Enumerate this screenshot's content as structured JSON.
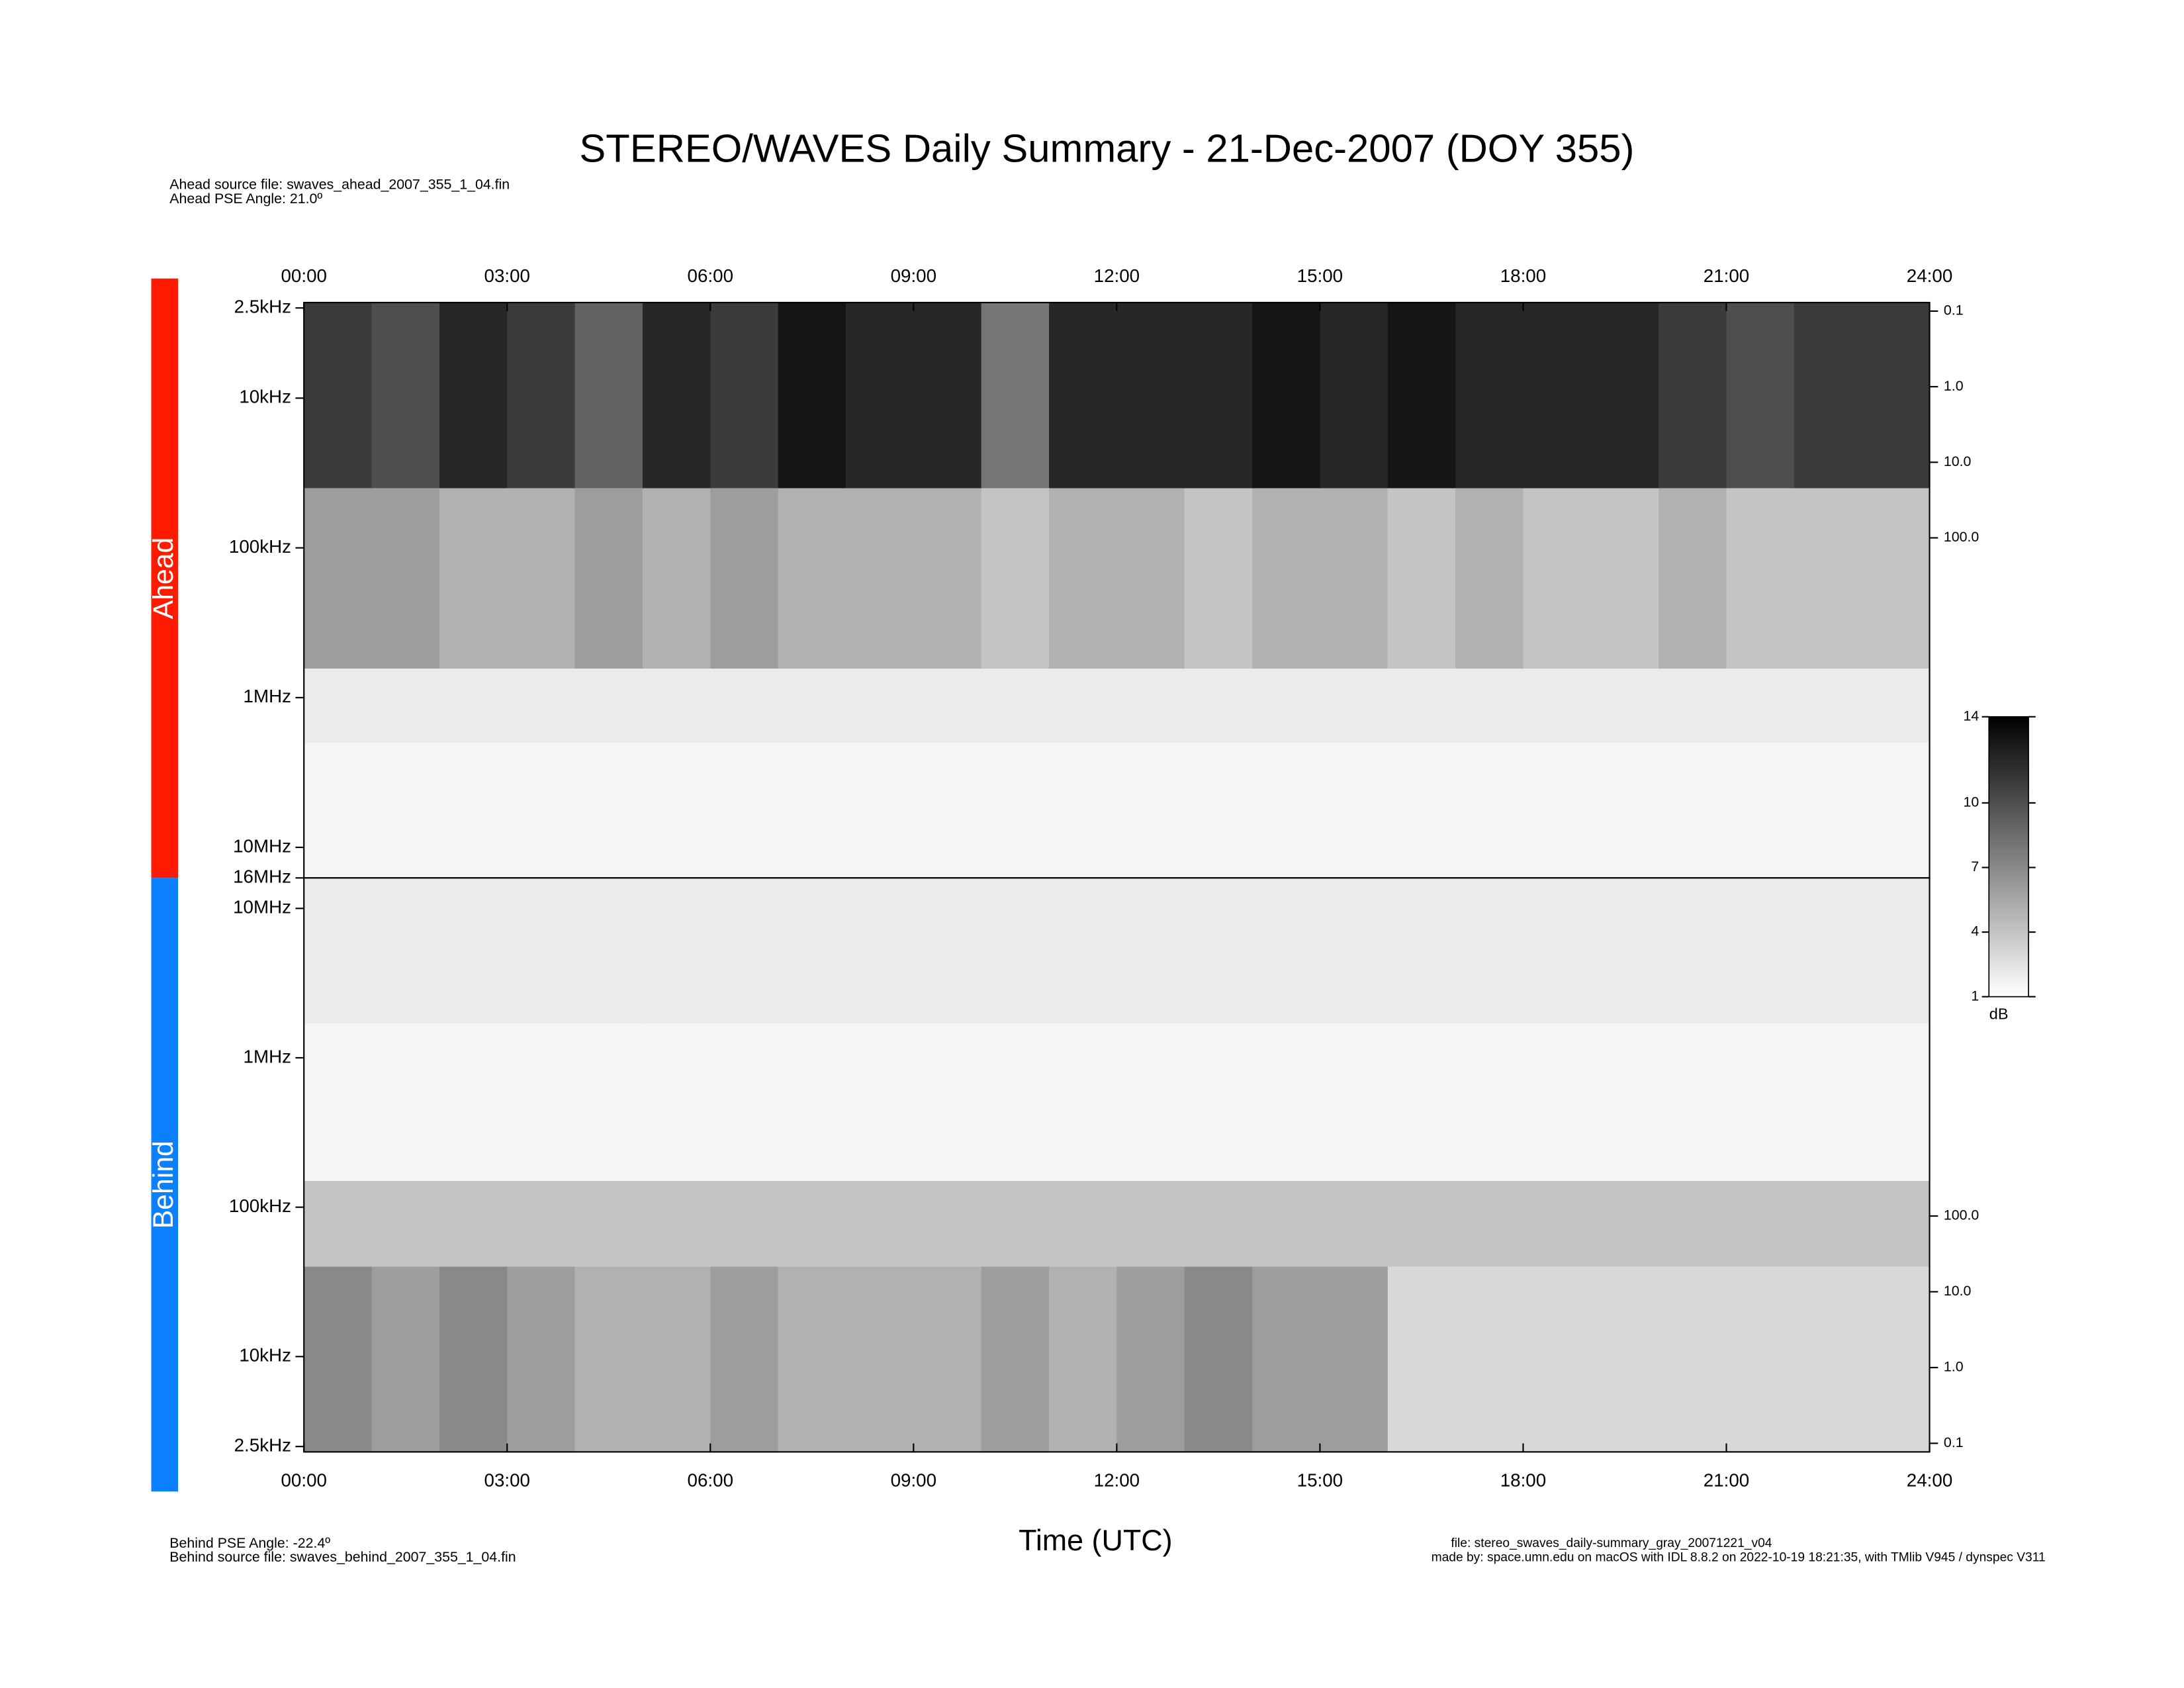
{
  "chart_data": {
    "type": "spectrogram",
    "title": "STEREO/WAVES Daily Summary - 21-Dec-2007 (DOY 355)",
    "notes": {
      "ahead_file": "Ahead source file: swaves_ahead_2007_355_1_04.fin",
      "ahead_angle": "Ahead PSE Angle:   21.0º",
      "behind_angle": "Behind PSE Angle:  -22.4º",
      "behind_file": "Behind source file: swaves_behind_2007_355_1_04.fin",
      "file": "file: stereo_swaves_daily-summary_gray_20071221_v04",
      "made_by": "made by: space.umn.edu on macOS with IDL 8.8.2 on 2022-10-19 18:21:35, with TMlib V945 / dynspec V311"
    },
    "xlabel": "Time (UTC)",
    "xlim": [
      0,
      24
    ],
    "xticks": [
      {
        "value": 0,
        "label": "00:00"
      },
      {
        "value": 3,
        "label": "03:00"
      },
      {
        "value": 6,
        "label": "06:00"
      },
      {
        "value": 9,
        "label": "09:00"
      },
      {
        "value": 12,
        "label": "12:00"
      },
      {
        "value": 15,
        "label": "15:00"
      },
      {
        "value": 18,
        "label": "18:00"
      },
      {
        "value": 21,
        "label": "21:00"
      },
      {
        "value": 24,
        "label": "24:00"
      }
    ],
    "bins": [
      0,
      1,
      2,
      3,
      4,
      5,
      6,
      7,
      8,
      9,
      10,
      11,
      12,
      13,
      14,
      15,
      16,
      17,
      18,
      19,
      20,
      21,
      22,
      23,
      24
    ],
    "colorbar": {
      "label": "dB",
      "lim": [
        1,
        14
      ],
      "ticks": [
        14,
        10,
        7,
        4,
        1
      ]
    },
    "panels": [
      {
        "name": "Ahead",
        "color": "#ff1a00",
        "ylim": [
          2300,
          16000000
        ],
        "log": true,
        "inverted": false,
        "yticks": [
          {
            "value": 2500,
            "label": "2.5kHz"
          },
          {
            "value": 10000,
            "label": "10kHz"
          },
          {
            "value": 100000,
            "label": "100kHz"
          },
          {
            "value": 1000000,
            "label": "1MHz"
          },
          {
            "value": 10000000,
            "label": "10MHz"
          },
          {
            "value": 16000000,
            "label": "16MHz"
          }
        ],
        "y2lim": [
          0.077,
          3160000
        ],
        "y2ticks": [
          {
            "value": 0.1,
            "label": "0.1"
          },
          {
            "value": 1,
            "label": "1.0"
          },
          {
            "value": 10,
            "label": "10.0"
          },
          {
            "value": 100,
            "label": "100.0"
          }
        ],
        "bands": [
          {
            "flim": [
              2300,
              40000
            ],
            "values": [
              11,
              10,
              12,
              11,
              9,
              12,
              11,
              13,
              12,
              12,
              8,
              12,
              12,
              12,
              13,
              12,
              13,
              12,
              12,
              12,
              11,
              10,
              11,
              11
            ]
          },
          {
            "flim": [
              40000,
              640000
            ],
            "values": [
              6,
              6,
              5,
              5,
              6,
              5,
              6,
              5,
              5,
              5,
              4,
              5,
              5,
              4,
              5,
              5,
              4,
              5,
              4,
              4,
              5,
              4,
              4,
              4
            ]
          },
          {
            "flim": [
              640000,
              2000000
            ],
            "values": [
              2,
              2,
              2,
              2,
              2,
              2,
              2,
              2,
              2,
              2,
              2,
              2,
              2,
              2,
              2,
              2,
              2,
              2,
              2,
              2,
              2,
              2,
              2,
              2
            ]
          },
          {
            "flim": [
              2000000,
              16000000
            ],
            "values": [
              1.5,
              1.5,
              1.5,
              1.5,
              1.5,
              1.5,
              1.5,
              1.5,
              1.5,
              1.5,
              1.5,
              1.5,
              1.5,
              1.5,
              1.5,
              1.5,
              1.5,
              1.5,
              1.5,
              1.5,
              1.5,
              1.5,
              1.5,
              1.5
            ]
          }
        ]
      },
      {
        "name": "Behind",
        "color": "#0a80ff",
        "ylim": [
          2300,
          16000000
        ],
        "log": true,
        "inverted": true,
        "yticks": [
          {
            "value": 2500,
            "label": "2.5kHz"
          },
          {
            "value": 10000,
            "label": "10kHz"
          },
          {
            "value": 100000,
            "label": "100kHz"
          },
          {
            "value": 1000000,
            "label": "1MHz"
          },
          {
            "value": 10000000,
            "label": "10MHz"
          }
        ],
        "y2lim": [
          0.077,
          2900000
        ],
        "y2ticks": [
          {
            "value": 0.1,
            "label": "0.1"
          },
          {
            "value": 1,
            "label": "1.0"
          },
          {
            "value": 10,
            "label": "10.0"
          },
          {
            "value": 100,
            "label": "100.0"
          }
        ],
        "bands": [
          {
            "flim": [
              2300,
              40000
            ],
            "values": [
              7,
              6,
              7,
              6,
              5,
              5,
              6,
              5,
              5,
              5,
              6,
              5,
              6,
              7,
              6,
              6,
              3,
              3,
              3,
              3,
              3,
              3,
              3,
              3
            ]
          },
          {
            "flim": [
              40000,
              150000
            ],
            "values": [
              4,
              4,
              4,
              4,
              4,
              4,
              4,
              4,
              4,
              4,
              4,
              4,
              4,
              4,
              4,
              4,
              4,
              4,
              4,
              4,
              4,
              4,
              4,
              4
            ]
          },
          {
            "flim": [
              150000,
              1700000
            ],
            "values": [
              1.5,
              1.5,
              1.5,
              1.5,
              1.5,
              1.5,
              1.5,
              1.5,
              1.5,
              1.5,
              1.5,
              1.5,
              1.5,
              1.5,
              1.5,
              1.5,
              1.5,
              1.5,
              1.5,
              1.5,
              1.5,
              1.5,
              1.5,
              1.5
            ]
          },
          {
            "flim": [
              1700000,
              16000000
            ],
            "values": [
              2,
              2,
              2,
              2,
              2,
              2,
              2,
              2,
              2,
              2,
              2,
              2,
              2,
              2,
              2,
              2,
              2,
              2,
              2,
              2,
              2,
              2,
              2,
              2
            ]
          }
        ]
      }
    ]
  }
}
